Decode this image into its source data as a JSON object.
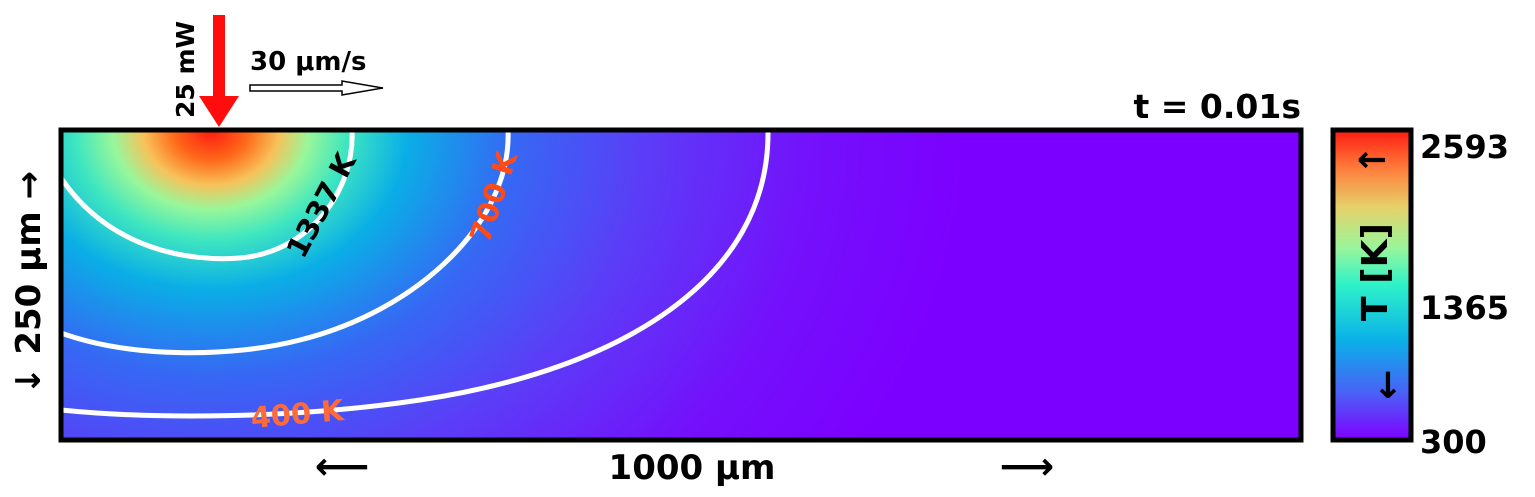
{
  "time_label": "t = 0.01s",
  "laser": {
    "power_label": "25 mW",
    "color": "#ff0d0d"
  },
  "scan": {
    "speed_label": "30 μm/s"
  },
  "axes": {
    "x_label": "1000 μm",
    "x_arrow_left": "⟵",
    "x_arrow_right": "⟶",
    "y_label": "↓  250 μm  →"
  },
  "colorbar": {
    "label": "T [K]",
    "arrow_up": "↑",
    "arrow_down": "↓",
    "ticks": [
      "2593",
      "1365",
      "300"
    ],
    "colormap": "rainbow",
    "min": 300,
    "max": 2593
  },
  "contours": [
    {
      "label": "1337 K",
      "label_color": "#000000"
    },
    {
      "label": "700 K",
      "label_color": "#ff4a1a"
    },
    {
      "label": "400 K",
      "label_color": "#ff6a3a"
    }
  ]
}
